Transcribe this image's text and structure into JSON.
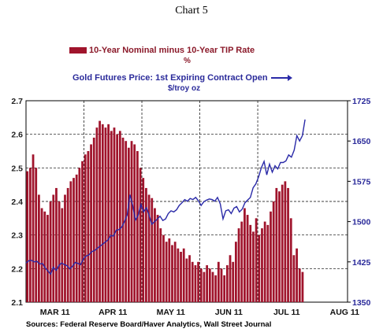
{
  "page_title": "Chart 5",
  "legend": {
    "series1_label": "10-Year Nominal minus 10-Year TIP Rate",
    "series1_unit": "%",
    "series2_label": "Gold Futures Price: 1st Expiring Contract Open",
    "series2_unit": "$/troy oz"
  },
  "source": "Sources:  Federal Reserve Board/Haver Analytics, Wall Street Journal",
  "colors": {
    "bars": "#a0142c",
    "line": "#2a2aa8",
    "axis_text": "#2a2a9a"
  },
  "chart_data": {
    "type": "bar",
    "grid": "dashed",
    "x_labels": [
      "MAR 11",
      "APR 11",
      "MAY 11",
      "JUN 11",
      "JUL 11",
      "AUG 11"
    ],
    "left_axis": {
      "ylim": [
        2.1,
        2.7
      ],
      "ticks": [
        "2.1",
        "2.2",
        "2.3",
        "2.4",
        "2.5",
        "2.6",
        "2.7"
      ]
    },
    "right_axis": {
      "ylim": [
        1350,
        1725
      ],
      "ticks": [
        "1350",
        "1425",
        "1500",
        "1575",
        "1650",
        "1725"
      ]
    },
    "series": [
      {
        "name": "10-Year Nominal minus 10-Year TIP Rate",
        "kind": "bar",
        "axis": "left",
        "values": [
          2.49,
          2.5,
          2.54,
          2.5,
          2.42,
          2.38,
          2.37,
          2.36,
          2.4,
          2.42,
          2.44,
          2.4,
          2.38,
          2.42,
          2.44,
          2.46,
          2.47,
          2.48,
          2.5,
          2.52,
          2.54,
          2.55,
          2.57,
          2.59,
          2.62,
          2.64,
          2.63,
          2.62,
          2.63,
          2.61,
          2.62,
          2.6,
          2.61,
          2.59,
          2.58,
          2.56,
          2.58,
          2.57,
          2.55,
          2.5,
          2.47,
          2.44,
          2.42,
          2.41,
          2.38,
          2.36,
          2.32,
          2.3,
          2.28,
          2.29,
          2.27,
          2.28,
          2.26,
          2.25,
          2.26,
          2.23,
          2.24,
          2.22,
          2.21,
          2.22,
          2.2,
          2.19,
          2.21,
          2.2,
          2.19,
          2.18,
          2.22,
          2.2,
          2.18,
          2.21,
          2.24,
          2.22,
          2.28,
          2.32,
          2.34,
          2.38,
          2.36,
          2.33,
          2.31,
          2.35,
          2.3,
          2.32,
          2.34,
          2.33,
          2.37,
          2.4,
          2.44,
          2.43,
          2.45,
          2.46,
          2.44,
          2.35,
          2.24,
          2.26,
          2.2,
          2.19
        ]
      },
      {
        "name": "Gold Futures Price: 1st Expiring Contract Open",
        "kind": "line",
        "axis": "right",
        "values": [
          1423,
          1427,
          1428,
          1425,
          1426,
          1421,
          1422,
          1414,
          1408,
          1402,
          1415,
          1409,
          1418,
          1423,
          1420,
          1418,
          1412,
          1417,
          1424,
          1422,
          1420,
          1431,
          1436,
          1438,
          1444,
          1446,
          1450,
          1454,
          1458,
          1462,
          1466,
          1474,
          1473,
          1484,
          1485,
          1490,
          1500,
          1513,
          1550,
          1530,
          1503,
          1512,
          1532,
          1518,
          1526,
          1512,
          1495,
          1500,
          1505,
          1510,
          1502,
          1505,
          1515,
          1520,
          1518,
          1522,
          1530,
          1535,
          1541,
          1538,
          1543,
          1541,
          1545,
          1539,
          1530,
          1537,
          1540,
          1542,
          1541,
          1538,
          1545,
          1533,
          1505,
          1520,
          1522,
          1515,
          1525,
          1528,
          1518,
          1523,
          1535,
          1540,
          1545,
          1563,
          1570,
          1583,
          1600,
          1612,
          1587,
          1607,
          1592,
          1604,
          1598,
          1610,
          1610,
          1613,
          1624,
          1620,
          1633,
          1660,
          1650,
          1660,
          1690
        ]
      }
    ]
  }
}
